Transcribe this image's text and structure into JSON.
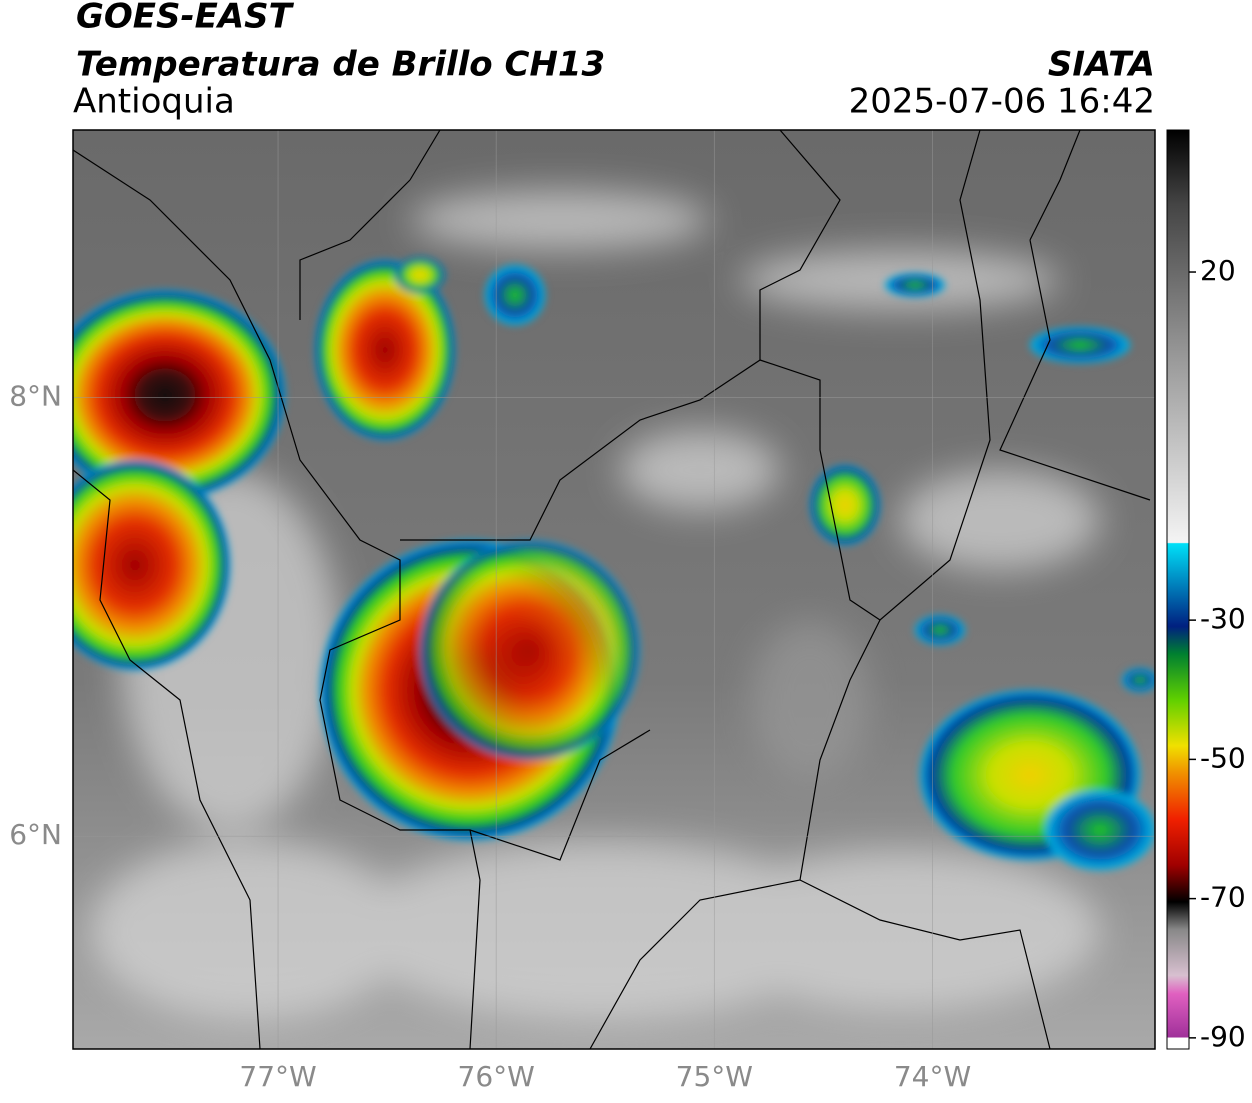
{
  "header": {
    "title": "GOES-EAST",
    "subtitle": "Temperatura de Brillo CH13",
    "region": "Antioquia",
    "source": "SIATA",
    "datetime": "2025-07-06 16:42"
  },
  "map": {
    "lonlim": [
      -77.94,
      -72.98
    ],
    "latlim": [
      5.03,
      9.22
    ],
    "xticks": [
      {
        "value": -77,
        "label": "77°W"
      },
      {
        "value": -76,
        "label": "76°W"
      },
      {
        "value": -75,
        "label": "75°W"
      },
      {
        "value": -74,
        "label": "74°W"
      }
    ],
    "yticks": [
      {
        "value": 8,
        "label": "8°N"
      },
      {
        "value": 6,
        "label": "6°N"
      }
    ],
    "grid": true
  },
  "colorbar": {
    "clim": [
      -91.6,
      40.4
    ],
    "ticks": [
      20,
      -30,
      -50,
      -70,
      -90
    ]
  }
}
